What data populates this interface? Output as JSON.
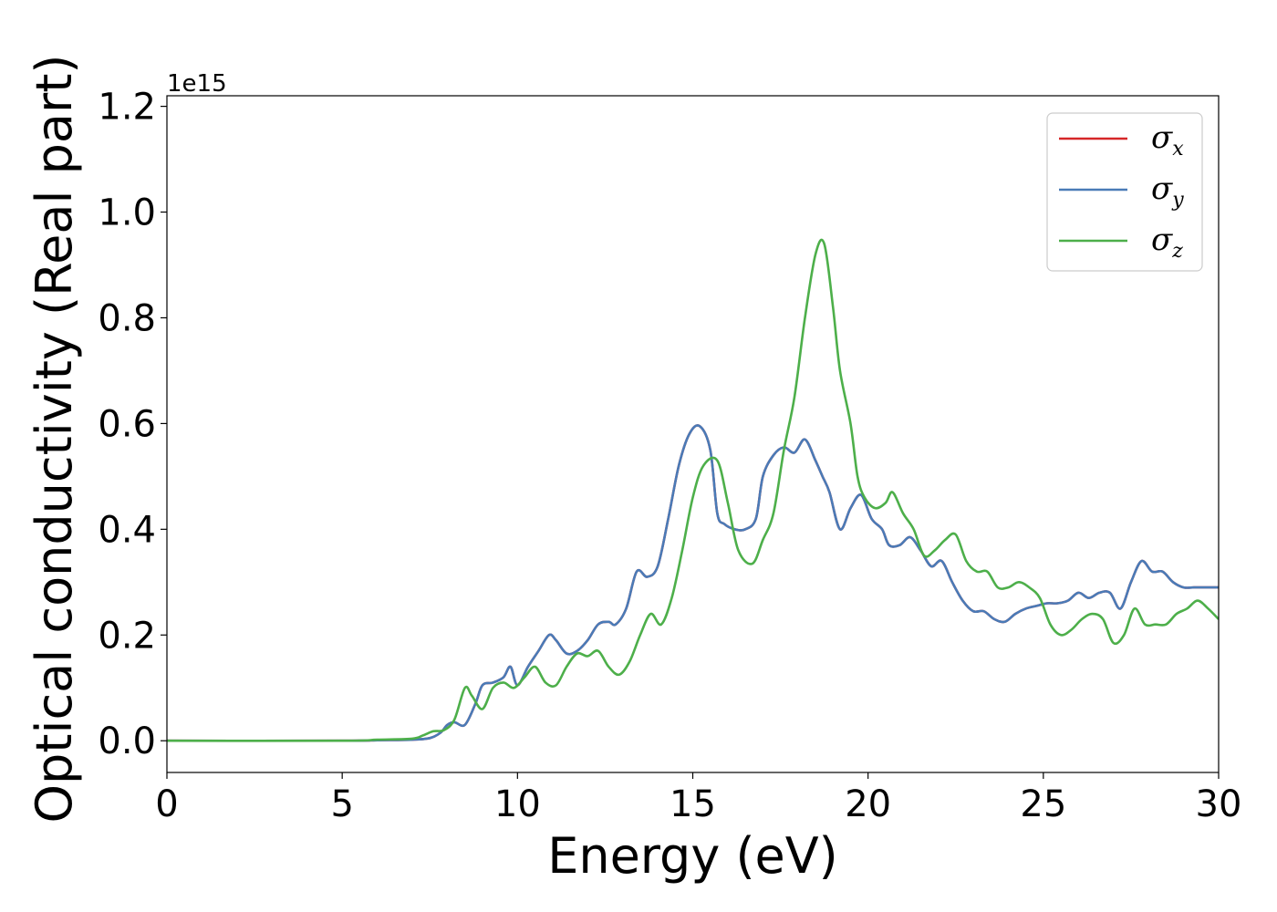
{
  "chart_data": {
    "type": "line",
    "xlabel": "Energy (eV)",
    "ylabel": "Optical conductivity (Real part)",
    "y_offset_label": "1e15",
    "xlim": [
      0,
      30
    ],
    "ylim": [
      -0.06,
      1.22
    ],
    "y_scale_multiplier": 1000000000000000.0,
    "xticks": [
      0,
      5,
      10,
      15,
      20,
      25,
      30
    ],
    "yticks": [
      0.0,
      0.2,
      0.4,
      0.6,
      0.8,
      1.0,
      1.2
    ],
    "ytick_labels": [
      "0.0",
      "0.2",
      "0.4",
      "0.6",
      "0.8",
      "1.0",
      "1.2"
    ],
    "grid": false,
    "legend_position": "top-right",
    "series": [
      {
        "name": "σx",
        "symbol": "σ",
        "subscript": "x",
        "color": "#d62728",
        "x": [
          0,
          5,
          6,
          7,
          7.5,
          7.8,
          8.0,
          8.2,
          8.5,
          8.8,
          9.0,
          9.3,
          9.6,
          9.8,
          10.0,
          10.3,
          10.6,
          10.9,
          11.1,
          11.4,
          11.7,
          12.0,
          12.3,
          12.6,
          12.8,
          13.1,
          13.4,
          13.7,
          14.0,
          14.3,
          14.6,
          14.9,
          15.2,
          15.5,
          15.7,
          15.9,
          16.2,
          16.5,
          16.8,
          17.0,
          17.3,
          17.6,
          17.9,
          18.2,
          18.5,
          18.7,
          18.9,
          19.2,
          19.5,
          19.8,
          20.1,
          20.4,
          20.6,
          20.9,
          21.2,
          21.5,
          21.8,
          22.1,
          22.4,
          22.7,
          23.0,
          23.3,
          23.6,
          23.9,
          24.2,
          24.5,
          24.8,
          25.1,
          25.4,
          25.7,
          26.0,
          26.3,
          26.6,
          26.9,
          27.2,
          27.5,
          27.8,
          28.1,
          28.4,
          28.7,
          29.0,
          29.3,
          29.6,
          30.0
        ],
        "y": [
          0.0,
          0.0,
          0.001,
          0.002,
          0.005,
          0.015,
          0.03,
          0.035,
          0.03,
          0.07,
          0.105,
          0.11,
          0.12,
          0.14,
          0.105,
          0.14,
          0.17,
          0.2,
          0.19,
          0.165,
          0.17,
          0.19,
          0.22,
          0.225,
          0.22,
          0.25,
          0.32,
          0.31,
          0.33,
          0.42,
          0.52,
          0.58,
          0.595,
          0.55,
          0.43,
          0.41,
          0.4,
          0.4,
          0.42,
          0.5,
          0.54,
          0.555,
          0.545,
          0.57,
          0.53,
          0.5,
          0.47,
          0.4,
          0.44,
          0.465,
          0.42,
          0.4,
          0.37,
          0.37,
          0.385,
          0.36,
          0.33,
          0.34,
          0.3,
          0.265,
          0.245,
          0.245,
          0.23,
          0.225,
          0.24,
          0.25,
          0.255,
          0.26,
          0.26,
          0.265,
          0.28,
          0.27,
          0.28,
          0.28,
          0.25,
          0.3,
          0.34,
          0.32,
          0.32,
          0.3,
          0.29,
          0.29,
          0.29,
          0.29
        ]
      },
      {
        "name": "σy",
        "symbol": "σ",
        "subscript": "y",
        "color": "#4a7bb7",
        "x": [
          0,
          5,
          6,
          7,
          7.5,
          7.8,
          8.0,
          8.2,
          8.5,
          8.8,
          9.0,
          9.3,
          9.6,
          9.8,
          10.0,
          10.3,
          10.6,
          10.9,
          11.1,
          11.4,
          11.7,
          12.0,
          12.3,
          12.6,
          12.8,
          13.1,
          13.4,
          13.7,
          14.0,
          14.3,
          14.6,
          14.9,
          15.2,
          15.5,
          15.7,
          15.9,
          16.2,
          16.5,
          16.8,
          17.0,
          17.3,
          17.6,
          17.9,
          18.2,
          18.5,
          18.7,
          18.9,
          19.2,
          19.5,
          19.8,
          20.1,
          20.4,
          20.6,
          20.9,
          21.2,
          21.5,
          21.8,
          22.1,
          22.4,
          22.7,
          23.0,
          23.3,
          23.6,
          23.9,
          24.2,
          24.5,
          24.8,
          25.1,
          25.4,
          25.7,
          26.0,
          26.3,
          26.6,
          26.9,
          27.2,
          27.5,
          27.8,
          28.1,
          28.4,
          28.7,
          29.0,
          29.3,
          29.6,
          30.0
        ],
        "y": [
          0.0,
          0.0,
          0.001,
          0.002,
          0.005,
          0.015,
          0.03,
          0.035,
          0.03,
          0.07,
          0.105,
          0.11,
          0.12,
          0.14,
          0.105,
          0.14,
          0.17,
          0.2,
          0.19,
          0.165,
          0.17,
          0.19,
          0.22,
          0.225,
          0.22,
          0.25,
          0.32,
          0.31,
          0.33,
          0.42,
          0.52,
          0.58,
          0.595,
          0.55,
          0.43,
          0.41,
          0.4,
          0.4,
          0.42,
          0.5,
          0.54,
          0.555,
          0.545,
          0.57,
          0.53,
          0.5,
          0.47,
          0.4,
          0.44,
          0.465,
          0.42,
          0.4,
          0.37,
          0.37,
          0.385,
          0.36,
          0.33,
          0.34,
          0.3,
          0.265,
          0.245,
          0.245,
          0.23,
          0.225,
          0.24,
          0.25,
          0.255,
          0.26,
          0.26,
          0.265,
          0.28,
          0.27,
          0.28,
          0.28,
          0.25,
          0.3,
          0.34,
          0.32,
          0.32,
          0.3,
          0.29,
          0.29,
          0.29,
          0.29
        ]
      },
      {
        "name": "σz",
        "symbol": "σ",
        "subscript": "z",
        "color": "#4daf4a",
        "x": [
          0,
          5,
          6,
          7,
          7.3,
          7.6,
          7.9,
          8.2,
          8.5,
          8.7,
          9.0,
          9.3,
          9.6,
          9.9,
          10.2,
          10.5,
          10.8,
          11.1,
          11.4,
          11.7,
          12.0,
          12.3,
          12.6,
          12.9,
          13.2,
          13.5,
          13.8,
          14.1,
          14.4,
          14.7,
          15.0,
          15.3,
          15.7,
          16.0,
          16.3,
          16.7,
          17.0,
          17.3,
          17.6,
          17.9,
          18.2,
          18.5,
          18.75,
          19.0,
          19.2,
          19.5,
          19.7,
          19.9,
          20.2,
          20.5,
          20.7,
          21.0,
          21.3,
          21.6,
          21.9,
          22.2,
          22.5,
          22.8,
          23.1,
          23.4,
          23.7,
          24.0,
          24.3,
          24.6,
          24.9,
          25.2,
          25.5,
          25.8,
          26.1,
          26.4,
          26.7,
          27.0,
          27.3,
          27.6,
          27.9,
          28.2,
          28.5,
          28.8,
          29.1,
          29.4,
          29.7,
          30.0
        ],
        "y": [
          0.0,
          0.0,
          0.002,
          0.004,
          0.01,
          0.018,
          0.02,
          0.04,
          0.1,
          0.085,
          0.06,
          0.1,
          0.11,
          0.1,
          0.12,
          0.14,
          0.11,
          0.105,
          0.14,
          0.165,
          0.16,
          0.17,
          0.14,
          0.125,
          0.15,
          0.2,
          0.24,
          0.22,
          0.27,
          0.36,
          0.46,
          0.52,
          0.53,
          0.45,
          0.36,
          0.335,
          0.38,
          0.43,
          0.55,
          0.65,
          0.8,
          0.92,
          0.94,
          0.82,
          0.7,
          0.6,
          0.5,
          0.46,
          0.44,
          0.45,
          0.47,
          0.43,
          0.4,
          0.35,
          0.36,
          0.38,
          0.39,
          0.34,
          0.32,
          0.32,
          0.29,
          0.29,
          0.3,
          0.29,
          0.27,
          0.22,
          0.2,
          0.21,
          0.23,
          0.24,
          0.23,
          0.185,
          0.2,
          0.25,
          0.22,
          0.22,
          0.22,
          0.24,
          0.25,
          0.265,
          0.25,
          0.23
        ]
      }
    ]
  }
}
